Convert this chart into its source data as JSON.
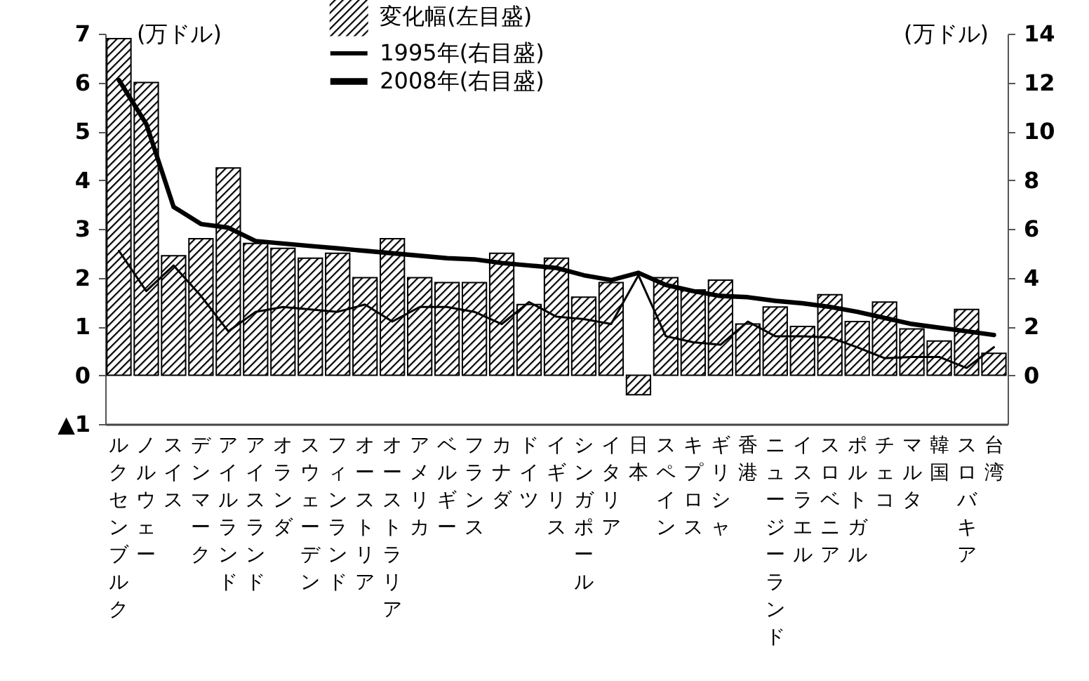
{
  "chart_data": {
    "type": "bar",
    "ylabel": "(万ドル)",
    "y2label": "(万ドル)",
    "categories": [
      "ルクセンブルク",
      "ノルウェー",
      "スイス",
      "デンマーク",
      "アイルランド",
      "アイスランド",
      "オランダ",
      "スウェーデン",
      "フィンランド",
      "オーストリア",
      "オーストラリア",
      "アメリカ",
      "ベルギー",
      "フランス",
      "カナダ",
      "ドイツ",
      "イギリス",
      "シンガポール",
      "イタリア",
      "日本",
      "スペイン",
      "キプロス",
      "ギリシャ",
      "香港",
      "ニュージーランド",
      "イスラエル",
      "スロベニア",
      "ポルトガル",
      "チェコ",
      "マルタ",
      "韓国",
      "スロバキア",
      "台湾"
    ],
    "series": [
      {
        "name": "変化幅(左目盛)",
        "color": "#000000",
        "values": [
          6.9,
          6.0,
          2.45,
          2.8,
          4.25,
          2.7,
          2.6,
          2.4,
          2.5,
          2.0,
          2.8,
          2.0,
          1.9,
          1.9,
          2.5,
          1.45,
          2.4,
          1.6,
          1.9,
          -0.4,
          2.0,
          1.75,
          1.95,
          1.05,
          1.4,
          1.0,
          1.65,
          1.1,
          1.5,
          0.95,
          0.7,
          1.35,
          0.45
        ]
      },
      {
        "name": "1995年(右目盛)",
        "type": "line",
        "axis": "y2",
        "color": "#000000",
        "values": [
          5.1,
          3.45,
          4.5,
          3.25,
          1.8,
          2.6,
          2.8,
          2.7,
          2.6,
          2.9,
          2.2,
          2.8,
          2.8,
          2.6,
          2.1,
          3.0,
          2.4,
          2.3,
          2.1,
          4.1,
          1.6,
          1.35,
          1.25,
          2.2,
          1.6,
          1.6,
          1.55,
          1.15,
          0.7,
          0.75,
          0.75,
          0.3,
          1.15
        ]
      },
      {
        "name": "2008年(右目盛)",
        "type": "line",
        "axis": "y2",
        "color": "#000000",
        "values": [
          12.1,
          10.3,
          6.9,
          6.2,
          6.05,
          5.5,
          5.4,
          5.3,
          5.2,
          5.1,
          5.0,
          4.9,
          4.8,
          4.75,
          4.6,
          4.5,
          4.4,
          4.1,
          3.9,
          4.2,
          3.7,
          3.45,
          3.25,
          3.2,
          3.05,
          2.95,
          2.8,
          2.6,
          2.35,
          2.1,
          1.95,
          1.8,
          1.65
        ]
      }
    ],
    "ylim": [
      -1,
      7
    ],
    "yticks": [
      {
        "value": -1,
        "label": "▲1"
      },
      0,
      1,
      2,
      3,
      4,
      5,
      6,
      7
    ],
    "y2lim": [
      -2,
      14
    ],
    "y2ticks": [
      0,
      2,
      4,
      6,
      8,
      10,
      12,
      14
    ],
    "legend": "top",
    "grid": false,
    "line_style": "solid",
    "marker": "none"
  }
}
